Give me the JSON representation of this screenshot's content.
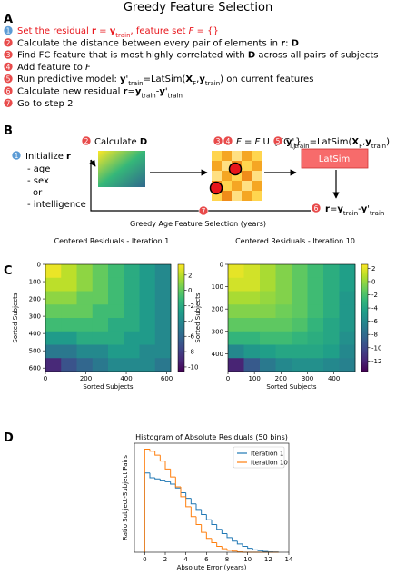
{
  "title": "Greedy Feature Selection",
  "panel_labels": [
    "A",
    "B",
    "C",
    "D"
  ],
  "panel_a": {
    "numbers": [
      "1",
      "2",
      "3",
      "4",
      "5",
      "6",
      "7"
    ],
    "steps": [
      [
        "Set the residual ",
        "r",
        " = ",
        "y",
        "train",
        ", feature set ",
        "F",
        " = {}"
      ],
      [
        "Calculate the distance between every pair of elements in ",
        "r",
        ": ",
        "D"
      ],
      [
        "Find FC feature that is most highly correlated with ",
        "D",
        " across all pairs of subjects"
      ],
      [
        "Add feature to ",
        "F"
      ],
      [
        "Run predictive model: ",
        "y",
        "'",
        "train",
        "=LatSim(",
        "X",
        "F",
        ",",
        "y",
        "train",
        ") on current features"
      ],
      [
        "Calculate new residual ",
        "r",
        "=",
        "y",
        "train",
        "-",
        "y",
        "'",
        "train"
      ],
      [
        "Go to step 2"
      ]
    ]
  },
  "panel_b": {
    "init": {
      "num": "1",
      "label": [
        "Initialize ",
        "r"
      ],
      "options": [
        "- age",
        "- sex",
        "or",
        "- intelligence"
      ]
    },
    "calc": {
      "num": "2",
      "label": [
        "Calculate ",
        "D"
      ]
    },
    "add": {
      "nums": [
        "3",
        "4"
      ],
      "label": [
        "F",
        " = ",
        "F",
        " U {FC",
        "i,j",
        "}"
      ]
    },
    "model": {
      "num": "5",
      "label": [
        "y",
        "'",
        "train",
        "=LatSim(",
        "X",
        "F",
        ",",
        "y",
        "train",
        ")"
      ]
    },
    "box": "LatSim",
    "update": {
      "num": "6",
      "label": [
        "r",
        "=",
        "y",
        "train",
        "-",
        "y",
        "'",
        "train"
      ]
    },
    "loop": {
      "num": "7"
    }
  },
  "panel_c_title": "Greedy Age Feature Selection (years)",
  "chart_data": [
    {
      "type": "heatmap",
      "title": "Centered Residuals - Iteration 1",
      "xlabel": "Sorted Subjects",
      "ylabel": "Sorted Subjects",
      "xlim": [
        0,
        620
      ],
      "ylim": [
        620,
        0
      ],
      "xticks": [
        0,
        200,
        400,
        600
      ],
      "yticks": [
        0,
        100,
        200,
        300,
        400,
        500,
        600
      ],
      "colormap": "viridis",
      "clim": [
        -10.6,
        3.4
      ],
      "cticks": [
        2,
        0,
        -2,
        -4,
        -6,
        -8,
        -10
      ],
      "z": [
        [
          3,
          2,
          1,
          0,
          -1,
          -2,
          -3,
          -4
        ],
        [
          2,
          2,
          1,
          0,
          -1,
          -2,
          -3,
          -4
        ],
        [
          1,
          1,
          0,
          0,
          -1,
          -2,
          -3,
          -4
        ],
        [
          0,
          0,
          0,
          -1,
          -1,
          -2,
          -3,
          -4
        ],
        [
          -1,
          -1,
          -1,
          -1,
          -2,
          -2,
          -3,
          -4
        ],
        [
          -3,
          -3,
          -2,
          -2,
          -2,
          -3,
          -3,
          -4
        ],
        [
          -5,
          -5,
          -4,
          -4,
          -3,
          -3,
          -4,
          -4
        ],
        [
          -9,
          -7,
          -6,
          -5,
          -4,
          -4,
          -4,
          -5
        ]
      ]
    },
    {
      "type": "heatmap",
      "title": "Centered Residuals - Iteration 10",
      "xlabel": "Sorted Subjects",
      "ylabel": "Sorted Subjects",
      "xlim": [
        0,
        480
      ],
      "ylim": [
        480,
        0
      ],
      "xticks": [
        0,
        100,
        200,
        300,
        400
      ],
      "yticks": [
        0,
        100,
        200,
        300,
        400
      ],
      "colormap": "viridis",
      "clim": [
        -13.6,
        2.6
      ],
      "cticks": [
        2,
        0,
        -2,
        -4,
        -6,
        -8,
        -10,
        -12
      ],
      "z": [
        [
          2,
          1.5,
          0.5,
          -0.5,
          -1.5,
          -2.5,
          -3.5,
          -4.5
        ],
        [
          1.5,
          1.5,
          0.5,
          -0.5,
          -1.5,
          -2.5,
          -3.5,
          -4.5
        ],
        [
          0.5,
          0.5,
          0,
          -0.5,
          -1.5,
          -2.5,
          -3.5,
          -5
        ],
        [
          -0.5,
          -0.5,
          -0.5,
          -1,
          -1.5,
          -2.5,
          -3.5,
          -5
        ],
        [
          -1.5,
          -1.5,
          -1.5,
          -1.5,
          -2,
          -3,
          -4,
          -5
        ],
        [
          -3,
          -3,
          -2.5,
          -2.5,
          -3,
          -3.5,
          -4,
          -5.5
        ],
        [
          -6,
          -5,
          -4.5,
          -4,
          -4,
          -4,
          -4.5,
          -6
        ],
        [
          -12,
          -9,
          -7,
          -6,
          -5.5,
          -5.5,
          -6,
          -6.5
        ]
      ]
    },
    {
      "type": "histogram",
      "title": "Histogram of Absolute Residuals (50 bins)",
      "xlabel": "Absolute Error (years)",
      "ylabel": "Ratio Subject-Subject Pairs",
      "xlim": [
        -1,
        14
      ],
      "ylim": [
        0,
        0.275
      ],
      "xticks": [
        0,
        2,
        4,
        6,
        8,
        10,
        12,
        14
      ],
      "legend": "upper right",
      "bins": [
        0,
        0.5,
        1,
        1.5,
        2,
        2.5,
        3,
        3.5,
        4,
        4.5,
        5,
        5.5,
        6,
        6.5,
        7,
        7.5,
        8,
        8.5,
        9,
        9.5,
        10,
        10.5,
        11,
        11.5,
        12,
        12.5,
        13
      ],
      "series": [
        {
          "name": "Iteration 1",
          "color": "#1f77b4",
          "values": [
            0.2,
            0.188,
            0.185,
            0.182,
            0.178,
            0.172,
            0.162,
            0.15,
            0.136,
            0.122,
            0.108,
            0.095,
            0.082,
            0.07,
            0.058,
            0.047,
            0.037,
            0.028,
            0.021,
            0.015,
            0.01,
            0.006,
            0.004,
            0.002,
            0.001,
            0.0005
          ]
        },
        {
          "name": "Iteration 10",
          "color": "#ff7f0e",
          "values": [
            0.26,
            0.255,
            0.245,
            0.23,
            0.21,
            0.19,
            0.165,
            0.14,
            0.115,
            0.09,
            0.07,
            0.05,
            0.035,
            0.024,
            0.015,
            0.009,
            0.005,
            0.003,
            0.001,
            0,
            0,
            0,
            0,
            0,
            0,
            0
          ]
        }
      ]
    }
  ]
}
